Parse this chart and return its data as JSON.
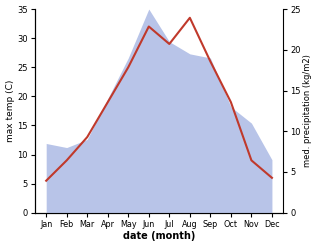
{
  "months": [
    "Jan",
    "Feb",
    "Mar",
    "Apr",
    "May",
    "Jun",
    "Jul",
    "Aug",
    "Sep",
    "Oct",
    "Nov",
    "Dec"
  ],
  "temperature": [
    5.5,
    9.0,
    13.0,
    19.0,
    25.0,
    32.0,
    29.0,
    33.5,
    26.0,
    19.0,
    9.0,
    6.0
  ],
  "precipitation": [
    8.5,
    8.0,
    9.0,
    14.0,
    19.0,
    25.0,
    21.0,
    19.5,
    19.0,
    13.0,
    11.0,
    6.5
  ],
  "temp_color": "#c0392b",
  "precip_fill_color": "#b8c4e8",
  "ylabel_left": "max temp (C)",
  "ylabel_right": "med. precipitation (kg/m2)",
  "xlabel": "date (month)",
  "ylim_left": [
    0,
    35
  ],
  "ylim_right": [
    0,
    25
  ],
  "yticks_left": [
    0,
    5,
    10,
    15,
    20,
    25,
    30,
    35
  ],
  "yticks_right": [
    0,
    5,
    10,
    15,
    20,
    25
  ],
  "background_color": "#ffffff"
}
